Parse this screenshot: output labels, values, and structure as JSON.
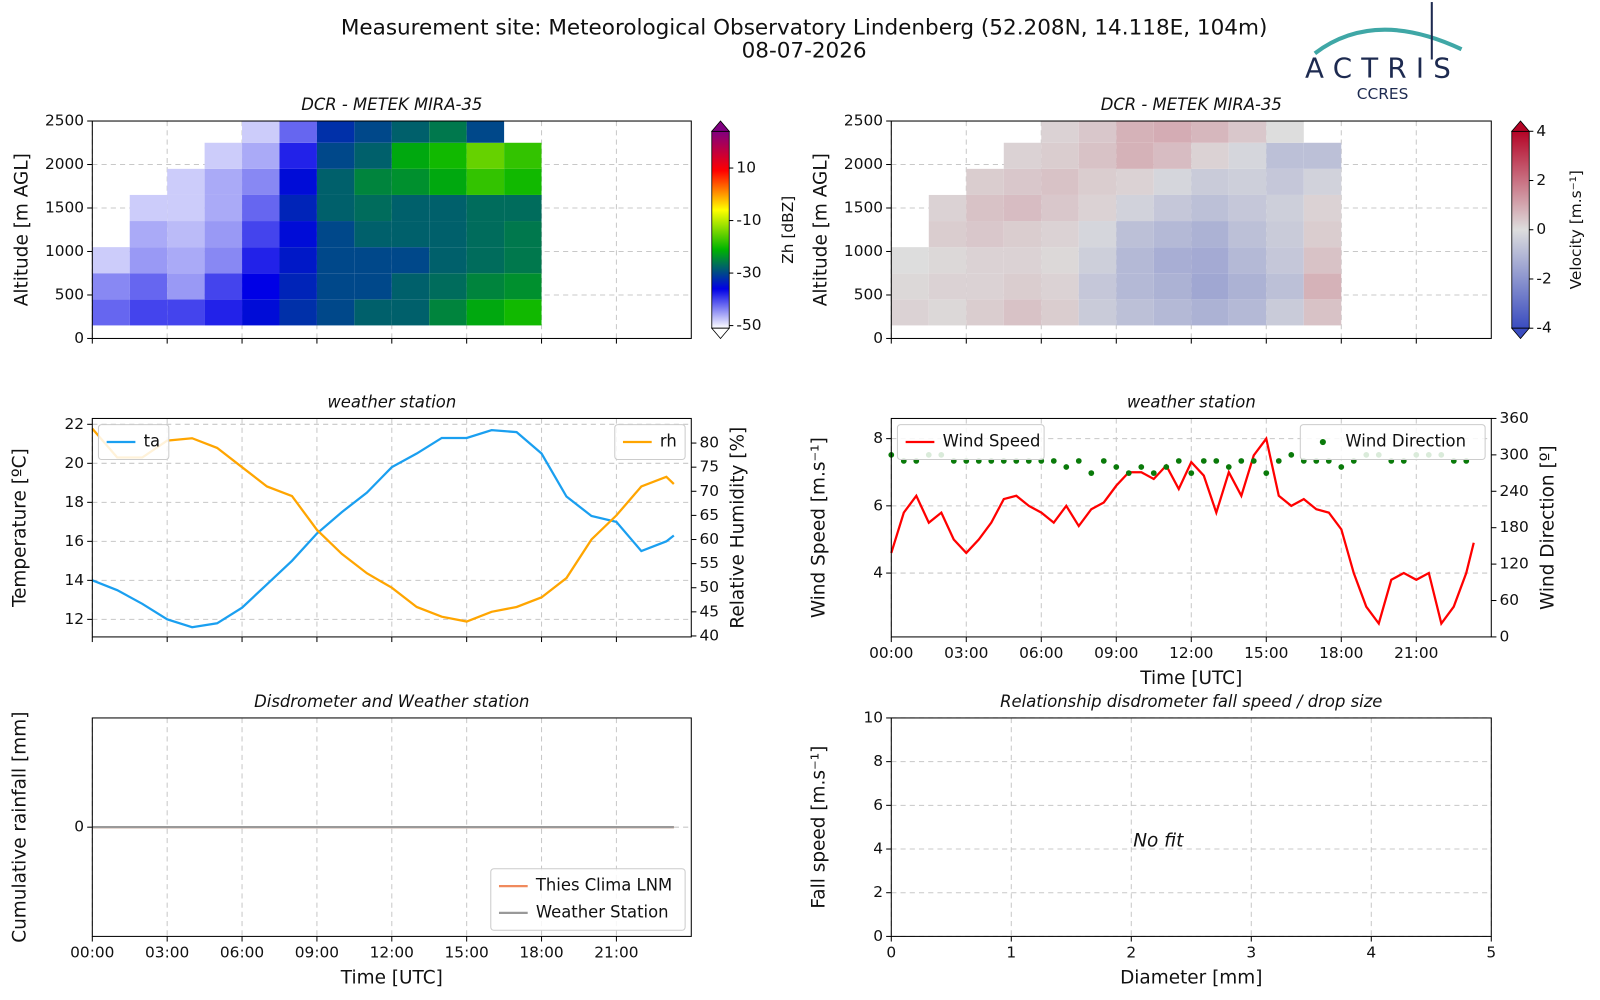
{
  "header": {
    "title": "Measurement site: Meteorological Observatory Lindenberg (52.208N, 14.118E, 104m)",
    "date": "08-07-2026"
  },
  "logo": {
    "name": "ACTRIS",
    "subtitle": "CCRES"
  },
  "chart_data": [
    {
      "type": "heatmap",
      "title": "DCR - METEK MIRA-35",
      "ylabel": "Altitude [m AGL]",
      "xlim": [
        0,
        24
      ],
      "xticks": [
        0,
        3,
        6,
        9,
        12,
        15,
        18,
        21
      ],
      "show_xtick_labels": false,
      "ylim": [
        0,
        2500
      ],
      "yticks": [
        0,
        500,
        1000,
        1500,
        2000,
        2500
      ],
      "grid": true,
      "xbins": [
        0,
        1.5,
        3,
        4.5,
        6,
        7.5,
        9,
        10.5,
        12,
        13.5,
        15,
        16.5,
        18
      ],
      "ybins": [
        150,
        450,
        750,
        1050,
        1350,
        1650,
        1950,
        2250,
        2500
      ],
      "z": [
        [
          -42,
          -40,
          -40,
          -38,
          -35,
          -32,
          -30,
          -28,
          -28,
          -25,
          -22,
          -20
        ],
        [
          -44,
          -42,
          -45,
          -40,
          -36,
          -33,
          -30,
          -30,
          -28,
          -27,
          -25,
          -24
        ],
        [
          -48,
          -45,
          -46,
          -44,
          -38,
          -34,
          -30,
          -30,
          -30,
          -28,
          -27,
          -26
        ],
        [
          null,
          -46,
          -47,
          -45,
          -40,
          -35,
          -30,
          -28,
          -28,
          -28,
          -27,
          -26
        ],
        [
          null,
          -48,
          -48,
          -46,
          -42,
          -33,
          -28,
          -27,
          -28,
          -28,
          -27,
          -27
        ],
        [
          null,
          null,
          -48,
          -46,
          -44,
          -35,
          -28,
          -25,
          -24,
          -22,
          -18,
          -20
        ],
        [
          null,
          null,
          null,
          -48,
          -46,
          -38,
          -30,
          -28,
          -22,
          -20,
          -15,
          -18
        ],
        [
          null,
          null,
          null,
          null,
          -48,
          -42,
          -32,
          -30,
          -28,
          -26,
          -30,
          null
        ]
      ],
      "zlim": [
        -51,
        24
      ],
      "zticks": [
        -50,
        -30,
        -10,
        10
      ],
      "zlabel": "Zh [dBZ]",
      "colormap": [
        "#ffffff",
        "#0000e6",
        "#00b400",
        "#ffff00",
        "#ff0000",
        "#800080"
      ]
    },
    {
      "type": "heatmap",
      "title": "DCR - METEK MIRA-35",
      "ylabel": "Altitude [m AGL]",
      "xlim": [
        0,
        24
      ],
      "xticks": [
        0,
        3,
        6,
        9,
        12,
        15,
        18,
        21
      ],
      "show_xtick_labels": false,
      "ylim": [
        0,
        2500
      ],
      "yticks": [
        0,
        500,
        1000,
        1500,
        2000,
        2500
      ],
      "grid": true,
      "xbins": [
        0,
        1.5,
        3,
        4.5,
        6,
        7.5,
        9,
        10.5,
        12,
        13.5,
        15,
        16.5,
        18
      ],
      "ybins": [
        150,
        450,
        750,
        1050,
        1350,
        1650,
        1950,
        2250,
        2500
      ],
      "z": [
        [
          0.2,
          0.1,
          0.3,
          0.5,
          0.3,
          -0.5,
          -0.8,
          -1.0,
          -1.2,
          -1.0,
          -0.5,
          0.5
        ],
        [
          0.1,
          0.2,
          0.2,
          0.3,
          0.2,
          -0.6,
          -1.0,
          -1.2,
          -1.5,
          -1.2,
          -0.8,
          0.8
        ],
        [
          0.0,
          0.1,
          0.2,
          0.2,
          0.1,
          -0.4,
          -1.0,
          -1.3,
          -1.4,
          -1.0,
          -0.6,
          0.5
        ],
        [
          null,
          0.3,
          0.4,
          0.3,
          0.2,
          -0.2,
          -0.8,
          -1.0,
          -1.2,
          -0.8,
          -0.5,
          0.3
        ],
        [
          null,
          0.2,
          0.5,
          0.6,
          0.4,
          0.2,
          -0.3,
          -0.6,
          -0.8,
          -0.6,
          -0.4,
          0.2
        ],
        [
          null,
          null,
          0.3,
          0.4,
          0.5,
          0.3,
          0.2,
          -0.2,
          -0.5,
          -0.4,
          -0.6,
          -0.3
        ],
        [
          null,
          null,
          null,
          0.2,
          0.3,
          0.5,
          0.8,
          0.6,
          0.2,
          -0.2,
          -0.8,
          -0.8
        ],
        [
          null,
          null,
          null,
          null,
          0.2,
          0.4,
          0.8,
          0.9,
          0.7,
          0.4,
          0.0,
          null
        ]
      ],
      "zlim": [
        -4,
        4
      ],
      "zticks": [
        -4,
        -2,
        0,
        2,
        4
      ],
      "zlabel": "Velocity [m.s⁻¹]",
      "colormap": [
        "#3a4cc0",
        "#dddddd",
        "#b40426"
      ]
    },
    {
      "type": "line",
      "title": "weather station",
      "ylabel": "Temperature [ºC]",
      "y2label": "Relative Humidity [%]",
      "xlim": [
        0,
        24
      ],
      "xticks": [
        0,
        3,
        6,
        9,
        12,
        15,
        18,
        21
      ],
      "show_xtick_labels": false,
      "ylim": [
        11.1,
        22.3
      ],
      "yticks": [
        12,
        14,
        16,
        18,
        20,
        22
      ],
      "y2lim": [
        39.8,
        85.1
      ],
      "y2ticks": [
        40,
        45,
        50,
        55,
        60,
        65,
        70,
        75,
        80
      ],
      "grid": true,
      "series": [
        {
          "name": "ta",
          "color": "#1a9ff0",
          "legend": "upper left",
          "x": [
            0,
            1,
            2,
            3,
            4,
            5,
            6,
            7,
            8,
            9,
            10,
            11,
            12,
            13,
            14,
            15,
            16,
            17,
            18,
            19,
            20,
            21,
            22,
            23,
            23.3
          ],
          "values": [
            14.0,
            13.5,
            12.8,
            12.0,
            11.6,
            11.8,
            12.6,
            13.8,
            15.0,
            16.4,
            17.5,
            18.5,
            19.8,
            20.5,
            21.3,
            21.3,
            21.7,
            21.6,
            20.5,
            18.3,
            17.3,
            17.0,
            15.5,
            16.0,
            16.3
          ]
        },
        {
          "name": "rh",
          "color": "#ffa500",
          "axis": "y2",
          "legend": "upper right",
          "x": [
            0,
            1,
            2,
            3,
            4,
            5,
            6,
            7,
            8,
            9,
            10,
            11,
            12,
            13,
            14,
            15,
            16,
            17,
            18,
            19,
            20,
            21,
            22,
            23,
            23.3
          ],
          "values": [
            83,
            77,
            77,
            80.5,
            81,
            79,
            75,
            71,
            69,
            62,
            57,
            53,
            50,
            46,
            44,
            43,
            45,
            46,
            48,
            52,
            60,
            65,
            71,
            73,
            71.5
          ]
        }
      ]
    },
    {
      "type": "line",
      "title": "weather station",
      "ylabel": "Wind Speed [m.s⁻¹]",
      "y2label": "Wind Direction [º]",
      "xlabel": "Time [UTC]",
      "xlim": [
        0,
        24
      ],
      "xticks": [
        {
          "value": 0,
          "label": "00:00"
        },
        {
          "value": 3,
          "label": "03:00"
        },
        {
          "value": 6,
          "label": "06:00"
        },
        {
          "value": 9,
          "label": "09:00"
        },
        {
          "value": 12,
          "label": "12:00"
        },
        {
          "value": 15,
          "label": "15:00"
        },
        {
          "value": 18,
          "label": "18:00"
        },
        {
          "value": 21,
          "label": "21:00"
        }
      ],
      "ylim": [
        2.1,
        8.6
      ],
      "yticks": [
        4,
        6,
        8
      ],
      "y2lim": [
        0,
        360
      ],
      "y2ticks": [
        0,
        60,
        120,
        180,
        240,
        300,
        360
      ],
      "grid": true,
      "series": [
        {
          "name": "Wind Speed",
          "color": "#ff0000",
          "legend": "upper left",
          "x": [
            0,
            0.5,
            1,
            1.5,
            2,
            2.5,
            3,
            3.5,
            4,
            4.5,
            5,
            5.5,
            6,
            6.5,
            7,
            7.5,
            8,
            8.5,
            9,
            9.5,
            10,
            10.5,
            11,
            11.5,
            12,
            12.5,
            13,
            13.5,
            14,
            14.5,
            15,
            15.5,
            16,
            16.5,
            17,
            17.5,
            18,
            18.5,
            19,
            19.5,
            20,
            20.5,
            21,
            21.5,
            22,
            22.5,
            23,
            23.3
          ],
          "values": [
            4.6,
            5.8,
            6.3,
            5.5,
            5.8,
            5.0,
            4.6,
            5.0,
            5.5,
            6.2,
            6.3,
            6.0,
            5.8,
            5.5,
            6.0,
            5.4,
            5.9,
            6.1,
            6.6,
            7.0,
            7.0,
            6.8,
            7.2,
            6.5,
            7.3,
            6.9,
            5.8,
            7.0,
            6.3,
            7.5,
            8.0,
            6.3,
            6.0,
            6.2,
            5.9,
            5.8,
            5.3,
            4.0,
            3.0,
            2.5,
            3.8,
            4.0,
            3.8,
            4.0,
            2.5,
            3.0,
            4.0,
            4.9
          ]
        },
        {
          "name": "Wind Direction",
          "color": "#0a7a0a",
          "axis": "y2",
          "style": "scatter",
          "legend": "upper right",
          "x": [
            0,
            0.5,
            1,
            1.5,
            2,
            2.5,
            3,
            3.5,
            4,
            4.5,
            5,
            5.5,
            6,
            6.5,
            7,
            7.5,
            8,
            8.5,
            9,
            9.5,
            10,
            10.5,
            11,
            11.5,
            12,
            12.5,
            13,
            13.5,
            14,
            14.5,
            15,
            15.5,
            16,
            16.5,
            17,
            17.5,
            18,
            18.5,
            19,
            19.5,
            20,
            20.5,
            21,
            21.5,
            22,
            22.5,
            23
          ],
          "values": [
            300,
            290,
            290,
            300,
            300,
            290,
            290,
            290,
            290,
            290,
            290,
            290,
            290,
            290,
            280,
            290,
            270,
            290,
            280,
            270,
            280,
            270,
            280,
            290,
            270,
            290,
            290,
            280,
            290,
            290,
            270,
            290,
            300,
            290,
            290,
            290,
            280,
            290,
            300,
            300,
            290,
            290,
            300,
            300,
            300,
            290,
            290
          ]
        }
      ]
    },
    {
      "type": "line",
      "title": "Disdrometer and Weather station",
      "ylabel": "Cumulative rainfall [mm]",
      "xlabel": "Time [UTC]",
      "xlim": [
        0,
        24
      ],
      "xticks": [
        {
          "value": 0,
          "label": "00:00"
        },
        {
          "value": 3,
          "label": "03:00"
        },
        {
          "value": 6,
          "label": "06:00"
        },
        {
          "value": 9,
          "label": "09:00"
        },
        {
          "value": 12,
          "label": "12:00"
        },
        {
          "value": 15,
          "label": "15:00"
        },
        {
          "value": 18,
          "label": "18:00"
        },
        {
          "value": 21,
          "label": "21:00"
        }
      ],
      "ylim": [
        -0.055,
        0.055
      ],
      "yticks": [
        0
      ],
      "grid": true,
      "series": [
        {
          "name": "Thies Clima LNM",
          "color": "#f08a5d",
          "legend": "lower right",
          "x": [
            0,
            23.3
          ],
          "values": [
            0,
            0
          ]
        },
        {
          "name": "Weather Station",
          "color": "#999999",
          "legend": "lower right",
          "x": [
            0,
            23.3
          ],
          "values": [
            0,
            0
          ]
        }
      ]
    },
    {
      "type": "scatter",
      "title": "Relationship disdrometer fall speed / drop size",
      "ylabel": "Fall speed [m.s⁻¹]",
      "xlabel": "Diameter [mm]",
      "xlim": [
        0,
        5
      ],
      "xticks": [
        0,
        1,
        2,
        3,
        4,
        5
      ],
      "ylim": [
        0,
        10
      ],
      "yticks": [
        0,
        2,
        4,
        6,
        8,
        10
      ],
      "grid": true,
      "annotation": "No fit",
      "series": []
    }
  ]
}
